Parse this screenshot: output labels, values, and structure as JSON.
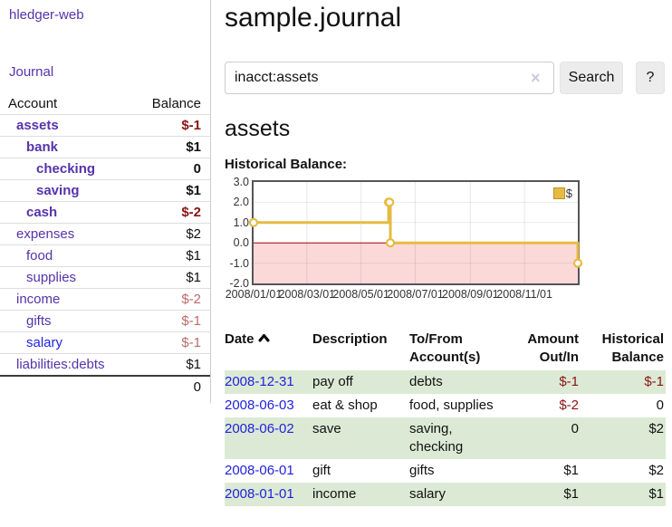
{
  "colors": {
    "link_purple": "#5533aa",
    "link_blue": "#2222dd",
    "negative_strong": "#8b1414",
    "negative_soft": "#bc6a6a",
    "row_stripe_green": "#dcead5",
    "chart_gold": "#e6bb45",
    "chart_negative_fill": "#fbd9d9",
    "chart_zero_line": "#a40000"
  },
  "app": {
    "brand": "hledger-web",
    "nav_journal": "Journal"
  },
  "sidebar": {
    "header": {
      "account": "Account",
      "balance": "Balance"
    },
    "accounts": [
      {
        "name": "assets",
        "balance": "$-1",
        "indent": 1,
        "bold": true,
        "tone": "neg-strong",
        "link": "purple"
      },
      {
        "name": "bank",
        "balance": "$1",
        "indent": 2,
        "bold": true,
        "tone": "plain",
        "link": "purple"
      },
      {
        "name": "checking",
        "balance": "0",
        "indent": 3,
        "bold": true,
        "tone": "plain",
        "link": "purple"
      },
      {
        "name": "saving",
        "balance": "$1",
        "indent": 3,
        "bold": true,
        "tone": "plain",
        "link": "purple"
      },
      {
        "name": "cash",
        "balance": "$-2",
        "indent": 2,
        "bold": true,
        "tone": "neg-strong",
        "link": "purple"
      },
      {
        "name": "expenses",
        "balance": "$2",
        "indent": 1,
        "bold": false,
        "tone": "plain",
        "link": "purple"
      },
      {
        "name": "food",
        "balance": "$1",
        "indent": 2,
        "bold": false,
        "tone": "plain",
        "link": "purple"
      },
      {
        "name": "supplies",
        "balance": "$1",
        "indent": 2,
        "bold": false,
        "tone": "plain",
        "link": "purple"
      },
      {
        "name": "income",
        "balance": "$-2",
        "indent": 1,
        "bold": false,
        "tone": "neg-soft",
        "link": "purple"
      },
      {
        "name": "gifts",
        "balance": "$-1",
        "indent": 2,
        "bold": false,
        "tone": "neg-soft",
        "link": "purple"
      },
      {
        "name": "salary",
        "balance": "$-1",
        "indent": 2,
        "bold": false,
        "tone": "neg-soft",
        "link": "blue"
      },
      {
        "name": "liabilities:debts",
        "balance": "$1",
        "indent": 1,
        "bold": false,
        "tone": "plain",
        "link": "purple"
      }
    ],
    "total": "0"
  },
  "main": {
    "title": "sample.journal",
    "search": {
      "query": "inacct:assets",
      "clear_label": "×",
      "button_label": "Search",
      "help_label": "?"
    },
    "account_heading": "assets",
    "chart_label": "Historical Balance:"
  },
  "chart_data": {
    "type": "line",
    "step": true,
    "title": "Historical Balance:",
    "legend": {
      "position": "top-right"
    },
    "series": [
      {
        "name": "$",
        "points": [
          [
            "2008-01-01",
            1
          ],
          [
            "2008-06-01",
            2
          ],
          [
            "2008-06-02",
            2
          ],
          [
            "2008-06-03",
            0
          ],
          [
            "2008-12-31",
            -1
          ]
        ]
      }
    ],
    "x_start": "2008-01-01",
    "x_end": "2008-12-31",
    "x_ticks": [
      "2008/01/01",
      "2008/03/01",
      "2008/05/01",
      "2008/07/01",
      "2008/09/01",
      "2008/11/01"
    ],
    "y_ticks": [
      "3.0",
      "2.0",
      "1.0",
      "0.0",
      "-1.0",
      "-2.0"
    ],
    "ylim": [
      -2,
      3
    ],
    "grid": true,
    "negative_region_shaded": true
  },
  "register": {
    "headers": {
      "date": "Date",
      "description": "Description",
      "accounts": "To/From\nAccount(s)",
      "amount": "Amount\nOut/In",
      "balance": "Historical\nBalance"
    },
    "sort": {
      "column": "date",
      "direction": "ascending-icon"
    },
    "rows": [
      {
        "date": "2008-12-31",
        "description": "pay off",
        "accounts": "debts",
        "amount": "$-1",
        "amount_tone": "neg-strong",
        "balance": "$-1",
        "balance_tone": "neg-strong"
      },
      {
        "date": "2008-06-03",
        "description": "eat & shop",
        "accounts": "food, supplies",
        "amount": "$-2",
        "amount_tone": "neg-strong",
        "balance": "0",
        "balance_tone": "plain"
      },
      {
        "date": "2008-06-02",
        "description": "save",
        "accounts": "saving, checking",
        "amount": "0",
        "amount_tone": "plain",
        "balance": "$2",
        "balance_tone": "plain"
      },
      {
        "date": "2008-06-01",
        "description": "gift",
        "accounts": "gifts",
        "amount": "$1",
        "amount_tone": "plain",
        "balance": "$2",
        "balance_tone": "plain"
      },
      {
        "date": "2008-01-01",
        "description": "income",
        "accounts": "salary",
        "amount": "$1",
        "amount_tone": "plain",
        "balance": "$1",
        "balance_tone": "plain"
      }
    ]
  }
}
